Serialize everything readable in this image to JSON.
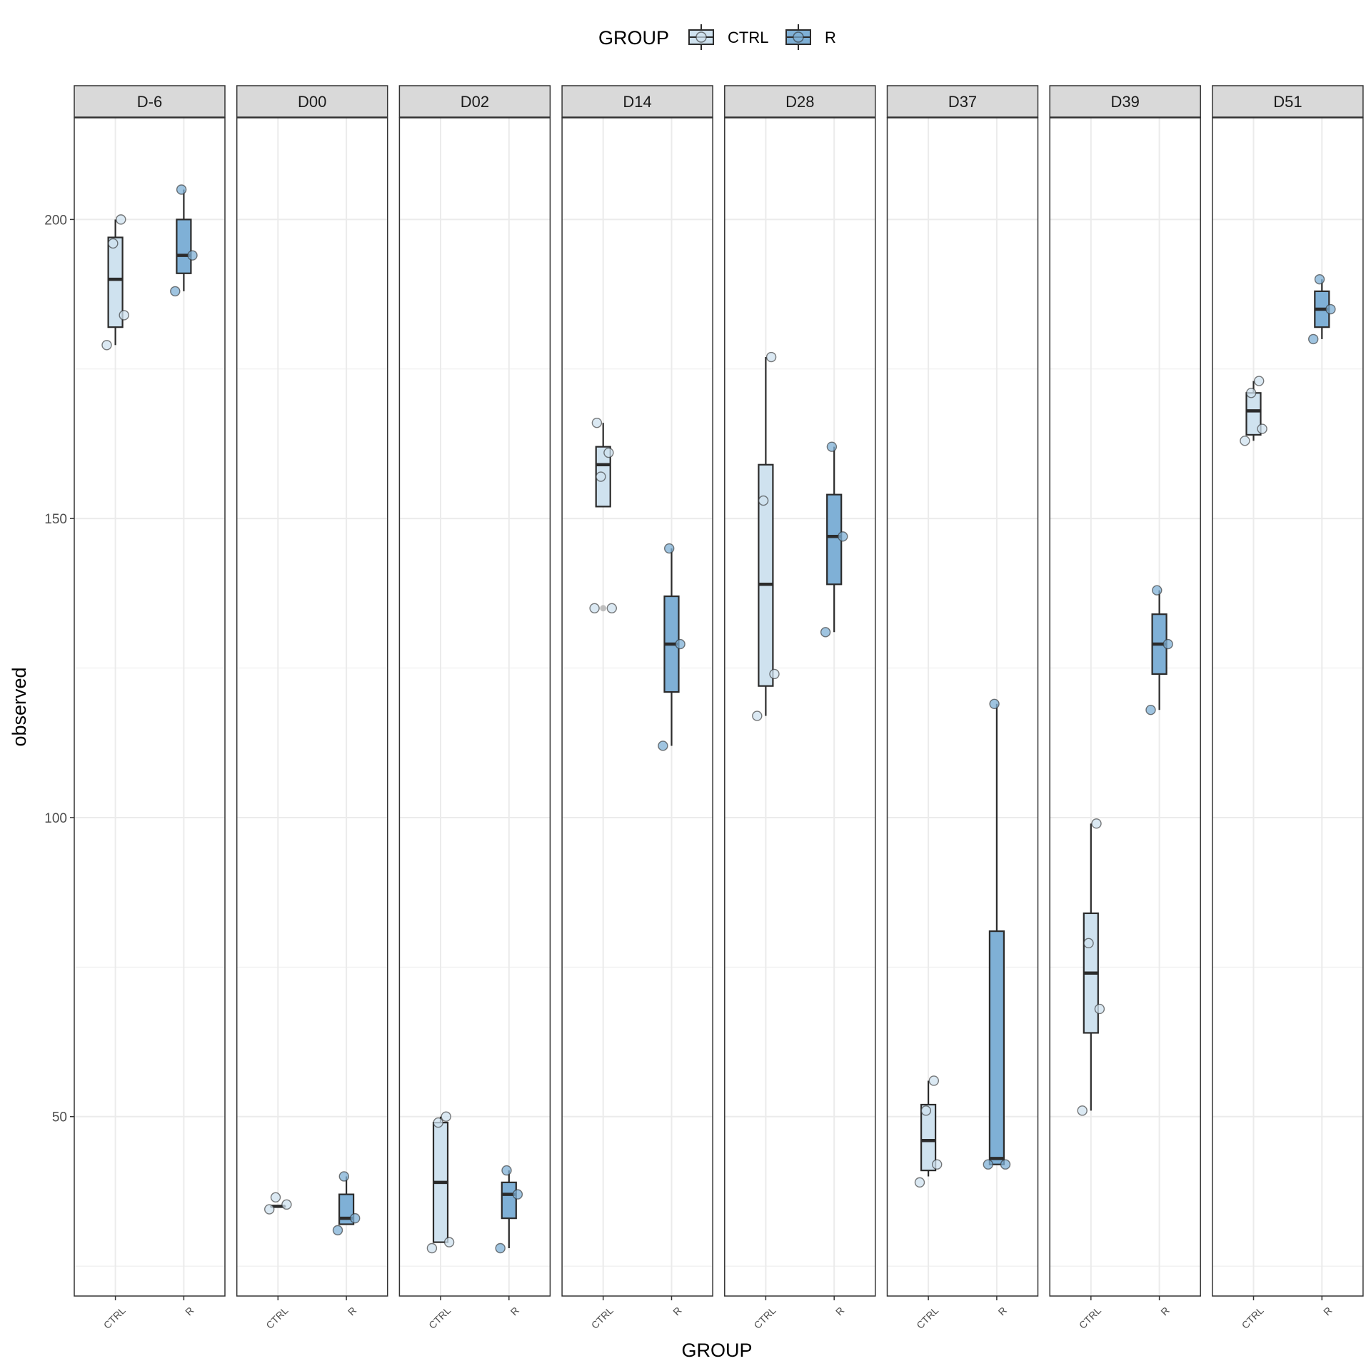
{
  "chart_data": {
    "type": "boxplot",
    "xlabel": "GROUP",
    "ylabel": "observed",
    "ylim": [
      20,
      217
    ],
    "yticks": [
      50,
      100,
      150,
      200
    ],
    "legend": {
      "title": "GROUP",
      "position": "top",
      "entries": [
        {
          "label": "CTRL",
          "fill": "#cfe2ef"
        },
        {
          "label": "R",
          "fill": "#7fb0d6"
        }
      ]
    },
    "categories": [
      "CTRL",
      "R"
    ],
    "colors": {
      "CTRL": "#cfe2ef",
      "R": "#7fb0d6",
      "outline": "#2b2b2b",
      "strip": "#d9d9d9",
      "grid": "#ebebeb"
    },
    "grid": true,
    "facets": [
      {
        "label": "D-6",
        "groups": [
          {
            "name": "CTRL",
            "box": {
              "lower_whisker": 179,
              "q1": 182,
              "median": 190,
              "q3": 197,
              "upper_whisker": 200
            },
            "points": [
              179,
              184,
              196,
              200
            ],
            "outliers": []
          },
          {
            "name": "R",
            "box": {
              "lower_whisker": 188,
              "q1": 191,
              "median": 194,
              "q3": 200,
              "upper_whisker": 205
            },
            "points": [
              188,
              194,
              205
            ],
            "outliers": []
          }
        ]
      },
      {
        "label": "D00",
        "groups": [
          {
            "name": "CTRL",
            "box": {
              "lower_whisker": 35,
              "q1": 35,
              "median": 35,
              "q3": 35,
              "upper_whisker": 35
            },
            "points": [
              34.5,
              35.3,
              36.5
            ],
            "outliers": []
          },
          {
            "name": "R",
            "box": {
              "lower_whisker": 32,
              "q1": 32,
              "median": 33,
              "q3": 37,
              "upper_whisker": 40
            },
            "points": [
              31,
              33,
              40
            ],
            "outliers": []
          }
        ]
      },
      {
        "label": "D02",
        "groups": [
          {
            "name": "CTRL",
            "box": {
              "lower_whisker": 29,
              "q1": 29,
              "median": 39,
              "q3": 49,
              "upper_whisker": 50
            },
            "points": [
              28,
              29,
              49,
              50
            ],
            "outliers": []
          },
          {
            "name": "R",
            "box": {
              "lower_whisker": 28,
              "q1": 33,
              "median": 37,
              "q3": 39,
              "upper_whisker": 41
            },
            "points": [
              28,
              37,
              41
            ],
            "outliers": []
          }
        ]
      },
      {
        "label": "D14",
        "groups": [
          {
            "name": "CTRL",
            "box": {
              "lower_whisker": 152,
              "q1": 152,
              "median": 159,
              "q3": 162,
              "upper_whisker": 166
            },
            "points": [
              135,
              135,
              157,
              161,
              166
            ],
            "outliers": [
              135
            ]
          },
          {
            "name": "R",
            "box": {
              "lower_whisker": 112,
              "q1": 121,
              "median": 129,
              "q3": 137,
              "upper_whisker": 145
            },
            "points": [
              112,
              129,
              145
            ],
            "outliers": []
          }
        ]
      },
      {
        "label": "D28",
        "groups": [
          {
            "name": "CTRL",
            "box": {
              "lower_whisker": 117,
              "q1": 122,
              "median": 139,
              "q3": 159,
              "upper_whisker": 177
            },
            "points": [
              117,
              124,
              153,
              177
            ],
            "outliers": []
          },
          {
            "name": "R",
            "box": {
              "lower_whisker": 131,
              "q1": 139,
              "median": 147,
              "q3": 154,
              "upper_whisker": 162
            },
            "points": [
              131,
              147,
              162
            ],
            "outliers": []
          }
        ]
      },
      {
        "label": "D37",
        "groups": [
          {
            "name": "CTRL",
            "box": {
              "lower_whisker": 40,
              "q1": 41,
              "median": 46,
              "q3": 52,
              "upper_whisker": 56
            },
            "points": [
              39,
              42,
              51,
              56
            ],
            "outliers": []
          },
          {
            "name": "R",
            "box": {
              "lower_whisker": 42,
              "q1": 42,
              "median": 43,
              "q3": 81,
              "upper_whisker": 119
            },
            "points": [
              42,
              42,
              119
            ],
            "outliers": []
          }
        ]
      },
      {
        "label": "D39",
        "groups": [
          {
            "name": "CTRL",
            "box": {
              "lower_whisker": 51,
              "q1": 64,
              "median": 74,
              "q3": 84,
              "upper_whisker": 99
            },
            "points": [
              51,
              68,
              79,
              99
            ],
            "outliers": []
          },
          {
            "name": "R",
            "box": {
              "lower_whisker": 118,
              "q1": 124,
              "median": 129,
              "q3": 134,
              "upper_whisker": 138
            },
            "points": [
              118,
              129,
              138
            ],
            "outliers": []
          }
        ]
      },
      {
        "label": "D51",
        "groups": [
          {
            "name": "CTRL",
            "box": {
              "lower_whisker": 163,
              "q1": 164,
              "median": 168,
              "q3": 171,
              "upper_whisker": 173
            },
            "points": [
              163,
              165,
              171,
              173
            ],
            "outliers": []
          },
          {
            "name": "R",
            "box": {
              "lower_whisker": 180,
              "q1": 182,
              "median": 185,
              "q3": 188,
              "upper_whisker": 190
            },
            "points": [
              180,
              185,
              190
            ],
            "outliers": []
          }
        ]
      }
    ]
  }
}
